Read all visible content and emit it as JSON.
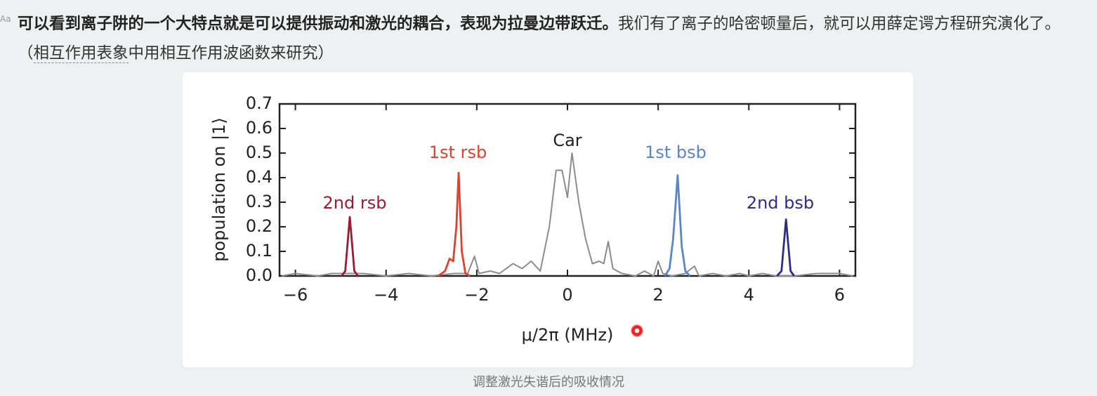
{
  "icon": "Aa",
  "paragraph": {
    "bold": "可以看到离子阱的一个大特点就是可以提供振动和激光的耦合，表现为拉曼边带跃迁。",
    "text": "我们有了离子的哈密顿量后，就可以用薛定谔方程研究演化了。（",
    "link": "相互作用表象",
    "tail": "中用相互作用波函数来研究）"
  },
  "chart_data": {
    "type": "line",
    "xlabel": "μ/2π (MHz)",
    "ylabel": "population on |1⟩",
    "xlim": [
      -6.35,
      6.35
    ],
    "ylim": [
      0,
      0.7
    ],
    "xticks": [
      {
        "value": -6,
        "label": "−6"
      },
      {
        "value": -4,
        "label": "−4"
      },
      {
        "value": -2,
        "label": "−2"
      },
      0,
      2,
      4,
      6
    ],
    "yticks": [
      {
        "value": 0,
        "label": "0.0"
      },
      0.1,
      0.2,
      0.3,
      0.4,
      0.5,
      0.6,
      0.7
    ],
    "series": [
      {
        "name": "Car",
        "color": "#8c8c8c",
        "x": [
          -6.3,
          -6.0,
          -5.5,
          -5.2,
          -4.5,
          -4.0,
          -3.5,
          -3.0,
          -2.5,
          -2.2,
          -2.05,
          -1.95,
          -1.7,
          -1.5,
          -1.2,
          -1.0,
          -0.8,
          -0.6,
          -0.4,
          -0.25,
          -0.12,
          0,
          0.1,
          0.25,
          0.4,
          0.55,
          0.7,
          0.8,
          0.9,
          1.0,
          1.2,
          1.5,
          1.7,
          1.9,
          2.0,
          2.1,
          2.3,
          2.6,
          2.8,
          2.9,
          3.2,
          3.5,
          3.8,
          4.0,
          4.3,
          4.6,
          5.0,
          5.5,
          6.0,
          6.3
        ],
        "values": [
          0,
          0.01,
          0,
          0.01,
          0.01,
          0,
          0.01,
          0,
          0.01,
          0.01,
          0.08,
          0.01,
          0.02,
          0.01,
          0.05,
          0.03,
          0.06,
          0.02,
          0.2,
          0.43,
          0.43,
          0.32,
          0.5,
          0.3,
          0.15,
          0.05,
          0.06,
          0.05,
          0.14,
          0.03,
          0.01,
          0,
          0.02,
          0,
          0.06,
          0.01,
          0,
          0.01,
          0.04,
          0,
          0.01,
          0,
          0.01,
          0,
          0.01,
          0,
          0,
          0.01,
          0.01,
          0
        ]
      },
      {
        "name": "2nd rsb",
        "color": "#9b1b30",
        "x": [
          -4.98,
          -4.9,
          -4.8,
          -4.7,
          -4.62
        ],
        "values": [
          0,
          0.02,
          0.24,
          0.02,
          0
        ]
      },
      {
        "name": "1st rsb",
        "color": "#d9432f",
        "x": [
          -2.85,
          -2.7,
          -2.6,
          -2.52,
          -2.45,
          -2.4,
          -2.33,
          -2.25,
          -2.15
        ],
        "values": [
          0,
          0.02,
          0.07,
          0.06,
          0.2,
          0.42,
          0.1,
          0.01,
          0
        ]
      },
      {
        "name": "1st bsb",
        "color": "#5b86c5",
        "x": [
          2.15,
          2.25,
          2.33,
          2.43,
          2.52,
          2.6,
          2.7
        ],
        "values": [
          0,
          0.03,
          0.15,
          0.41,
          0.12,
          0.02,
          0
        ]
      },
      {
        "name": "2nd bsb",
        "color": "#2f2f7f",
        "x": [
          4.62,
          4.72,
          4.82,
          4.92,
          5.0
        ],
        "values": [
          0,
          0.02,
          0.23,
          0.02,
          0
        ]
      }
    ]
  },
  "caption": "调整激光失谐后的吸收情况"
}
